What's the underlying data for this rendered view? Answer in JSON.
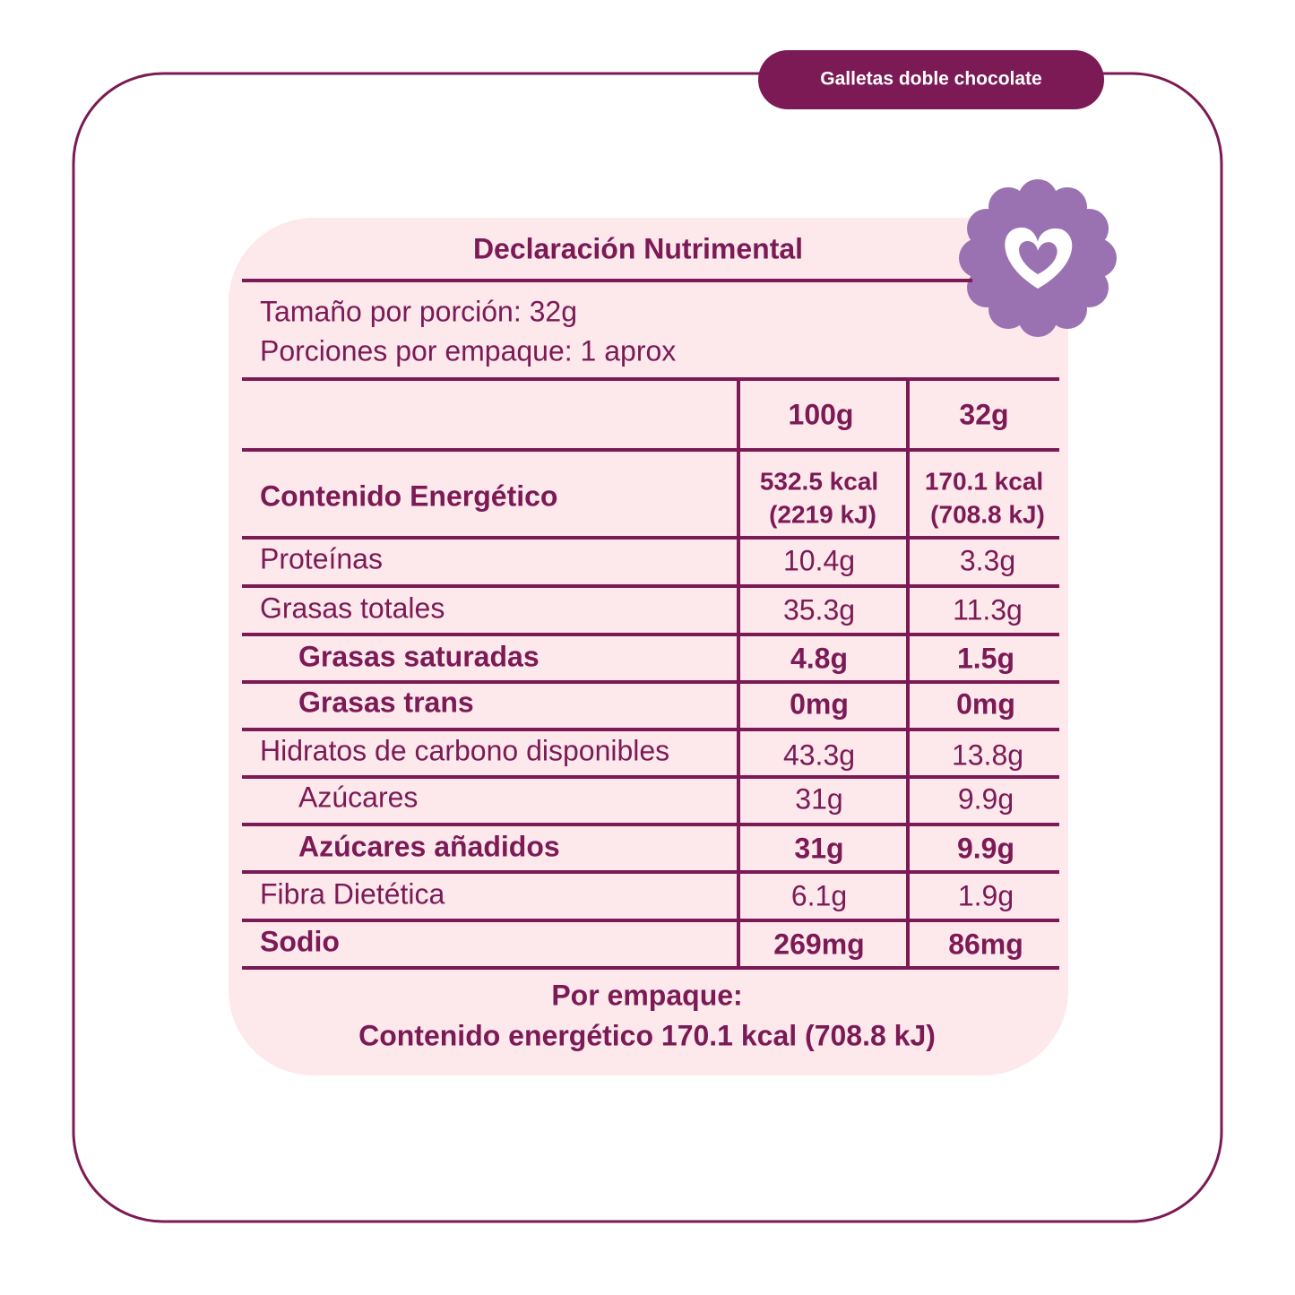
{
  "tag": "Galletas doble chocolate",
  "title": "Declaración Nutrimental",
  "serving": [
    "Tamaño por porción: 32g",
    "Porciones por empaque: 1 aprox"
  ],
  "table": {
    "columns": [
      "100g",
      "32g"
    ],
    "rows": [
      [
        "Contenido Energético",
        [
          "532.5 kcal",
          "(2219 kJ)"
        ],
        [
          "170.1 kcal",
          "(708.8 kJ)"
        ]
      ],
      [
        "Proteínas",
        "10.4g",
        "3.3g"
      ],
      [
        "Grasas totales",
        "35.3g",
        "11.3g"
      ],
      [
        "Grasas saturadas",
        "4.8g",
        "1.5g"
      ],
      [
        "Grasas trans",
        "0mg",
        "0mg"
      ],
      [
        "Hidratos de carbono disponibles",
        "43.3g",
        "13.8g"
      ],
      [
        "Azúcares",
        "31g",
        "9.9g"
      ],
      [
        "Azúcares añadidos",
        "31g",
        "9.9g"
      ],
      [
        "Fibra Dietética",
        "6.1g",
        "1.9g"
      ],
      [
        "Sodio",
        "269mg",
        "86mg"
      ]
    ]
  },
  "footer": [
    "Por empaque:",
    "Contenido energético 170.1 kcal (708.8 kJ)"
  ]
}
